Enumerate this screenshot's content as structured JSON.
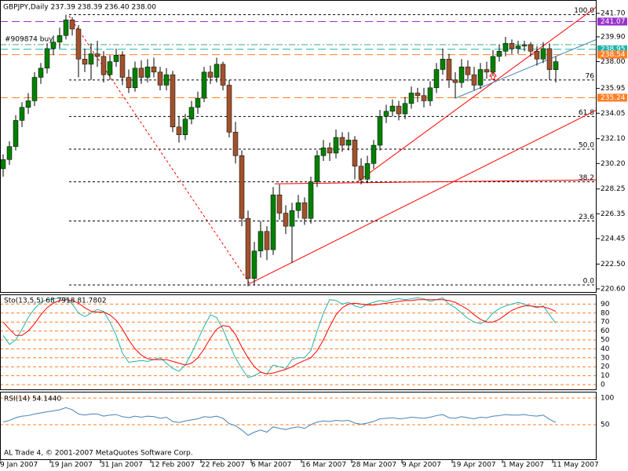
{
  "chart_data": [
    {
      "type": "candlestick",
      "header": "GBPJPY,Daily 237.39 238.39 236.40 238.00",
      "order_label": "#909874 buy",
      "copyright": "AL Trade 4, © 2001-2007 MetaQuotes Software Corp.",
      "up_color": "#008000",
      "down_color": "#a0522d",
      "wick_color": "#000000",
      "ylim": [
        220.6,
        241.7
      ],
      "yticks": [
        {
          "value": 241.7,
          "label": "241.70"
        },
        {
          "value": 239.9,
          "label": "239.90"
        },
        {
          "value": 238.0,
          "label": "238.00"
        },
        235.95,
        234.05,
        {
          "value": 232.1,
          "label": "232.10"
        },
        {
          "value": 230.2,
          "label": "230.20"
        },
        228.25,
        226.35,
        224.45,
        {
          "value": 222.5,
          "label": "222.50"
        },
        {
          "value": 220.6,
          "label": "220.60"
        }
      ],
      "categories": [
        "9 Jan 2007",
        null,
        null,
        null,
        null,
        null,
        null,
        null,
        "19 Jan 2007",
        null,
        null,
        null,
        null,
        null,
        null,
        null,
        "31 Jan 2007",
        null,
        null,
        null,
        null,
        null,
        null,
        null,
        "12 Feb 2007",
        null,
        null,
        null,
        null,
        null,
        null,
        null,
        "22 Feb 2007",
        null,
        null,
        null,
        null,
        null,
        null,
        null,
        "6 Mar 2007",
        null,
        null,
        null,
        null,
        null,
        null,
        null,
        "16 Mar 2007",
        null,
        null,
        null,
        null,
        null,
        null,
        null,
        "28 Mar 2007",
        null,
        null,
        null,
        null,
        null,
        null,
        null,
        "9 Apr 2007",
        null,
        null,
        null,
        null,
        null,
        null,
        null,
        "19 Apr 2007",
        null,
        null,
        null,
        null,
        null,
        null,
        null,
        "1 May 2007",
        null,
        null,
        null,
        null,
        null,
        null,
        null,
        "11 May 2007"
      ],
      "ohlc": [
        [
          229.8,
          230.9,
          229.2,
          230.5
        ],
        [
          230.5,
          231.9,
          230.1,
          231.5
        ],
        [
          231.5,
          233.9,
          231.2,
          233.5
        ],
        [
          233.5,
          234.9,
          233.0,
          234.5
        ],
        [
          234.5,
          235.6,
          234.0,
          235.0
        ],
        [
          235.0,
          237.2,
          234.6,
          236.8
        ],
        [
          236.8,
          237.9,
          236.3,
          237.5
        ],
        [
          237.5,
          239.4,
          237.1,
          239.0
        ],
        [
          239.0,
          240.0,
          238.5,
          239.5
        ],
        [
          239.5,
          240.6,
          239.0,
          240.0
        ],
        [
          240.0,
          241.6,
          239.7,
          241.2
        ],
        [
          241.2,
          241.4,
          240.0,
          240.5
        ],
        [
          240.5,
          240.8,
          236.8,
          238.2
        ],
        [
          238.2,
          239.0,
          237.2,
          237.8
        ],
        [
          237.8,
          239.4,
          236.6,
          238.6
        ],
        [
          238.6,
          239.6,
          237.6,
          238.4
        ],
        [
          238.4,
          238.8,
          236.4,
          237.0
        ],
        [
          237.0,
          238.5,
          236.6,
          238.0
        ],
        [
          238.0,
          239.0,
          237.6,
          238.5
        ],
        [
          238.5,
          238.8,
          236.2,
          236.8
        ],
        [
          236.8,
          237.4,
          235.6,
          236.0
        ],
        [
          236.0,
          238.0,
          235.7,
          237.5
        ],
        [
          237.5,
          238.1,
          236.3,
          236.8
        ],
        [
          236.8,
          238.2,
          236.4,
          237.6
        ],
        [
          237.6,
          238.3,
          236.8,
          237.2
        ],
        [
          237.2,
          237.6,
          235.8,
          236.2
        ],
        [
          236.2,
          237.5,
          235.8,
          237.0
        ],
        [
          237.0,
          237.3,
          232.6,
          233.0
        ],
        [
          233.0,
          233.8,
          231.8,
          232.4
        ],
        [
          232.4,
          234.0,
          232.0,
          233.6
        ],
        [
          233.6,
          235.0,
          233.2,
          234.5
        ],
        [
          234.5,
          235.7,
          234.0,
          235.2
        ],
        [
          235.2,
          237.6,
          234.9,
          237.2
        ],
        [
          237.2,
          237.7,
          236.3,
          236.8
        ],
        [
          236.8,
          238.3,
          236.4,
          237.8
        ],
        [
          237.8,
          238.0,
          235.8,
          236.2
        ],
        [
          236.2,
          236.6,
          232.2,
          232.6
        ],
        [
          232.6,
          233.4,
          230.2,
          230.8
        ],
        [
          230.8,
          231.2,
          225.4,
          226.0
        ],
        [
          226.0,
          226.6,
          220.8,
          221.4
        ],
        [
          221.4,
          224.2,
          220.9,
          223.5
        ],
        [
          223.5,
          225.8,
          223.0,
          225.0
        ],
        [
          225.0,
          225.4,
          222.8,
          223.6
        ],
        [
          223.6,
          228.4,
          223.2,
          227.8
        ],
        [
          227.8,
          228.6,
          225.9,
          226.4
        ],
        [
          226.4,
          227.0,
          224.8,
          225.4
        ],
        [
          225.4,
          227.2,
          222.6,
          226.6
        ],
        [
          226.6,
          227.8,
          226.0,
          227.2
        ],
        [
          227.2,
          227.6,
          225.5,
          226.0
        ],
        [
          226.0,
          229.2,
          225.6,
          228.8
        ],
        [
          228.8,
          231.2,
          228.4,
          230.8
        ],
        [
          230.8,
          232.0,
          230.4,
          231.4
        ],
        [
          231.4,
          231.8,
          230.4,
          231.0
        ],
        [
          231.0,
          232.8,
          230.6,
          232.2
        ],
        [
          232.2,
          232.6,
          231.1,
          231.6
        ],
        [
          231.6,
          232.6,
          231.2,
          232.0
        ],
        [
          232.0,
          232.3,
          229.0,
          230.0
        ],
        [
          230.0,
          230.6,
          228.6,
          229.0
        ],
        [
          229.0,
          230.8,
          228.7,
          230.2
        ],
        [
          230.2,
          232.0,
          229.8,
          231.6
        ],
        [
          231.6,
          234.3,
          231.2,
          233.8
        ],
        [
          233.8,
          234.7,
          233.3,
          234.2
        ],
        [
          234.2,
          235.1,
          233.8,
          234.6
        ],
        [
          234.6,
          235.0,
          233.5,
          234.0
        ],
        [
          234.0,
          235.3,
          233.6,
          234.8
        ],
        [
          234.8,
          236.1,
          234.4,
          235.6
        ],
        [
          235.6,
          236.0,
          234.9,
          235.4
        ],
        [
          235.4,
          236.0,
          234.5,
          235.0
        ],
        [
          235.0,
          236.5,
          234.6,
          236.0
        ],
        [
          236.0,
          237.9,
          235.6,
          237.4
        ],
        [
          237.4,
          239.0,
          237.0,
          238.2
        ],
        [
          238.2,
          238.6,
          236.0,
          236.6
        ],
        [
          236.6,
          237.2,
          235.2,
          236.4
        ],
        [
          236.4,
          238.2,
          236.0,
          237.6
        ],
        [
          237.6,
          238.1,
          236.5,
          237.0
        ],
        [
          237.0,
          237.6,
          235.8,
          236.2
        ],
        [
          236.2,
          237.9,
          235.9,
          237.4
        ],
        [
          237.4,
          238.0,
          236.7,
          237.2
        ],
        [
          237.2,
          238.9,
          236.9,
          238.4
        ],
        [
          238.4,
          239.3,
          238.0,
          238.8
        ],
        [
          238.8,
          239.9,
          238.4,
          239.4
        ],
        [
          239.4,
          239.7,
          238.6,
          239.0
        ],
        [
          239.0,
          239.6,
          238.6,
          239.2
        ],
        [
          239.2,
          239.6,
          238.8,
          239.3
        ],
        [
          239.3,
          239.5,
          238.4,
          238.8
        ],
        [
          238.8,
          239.2,
          237.7,
          238.2
        ],
        [
          238.2,
          239.5,
          237.9,
          239.0
        ],
        [
          239.0,
          239.4,
          236.6,
          237.39
        ],
        [
          237.39,
          238.39,
          236.4,
          238.0
        ]
      ],
      "fib_levels": [
        {
          "label": "100.0",
          "price": 241.6
        },
        {
          "label": "76",
          "price": 236.6
        },
        {
          "label": "61.8",
          "price": 233.8
        },
        {
          "label": "50.0",
          "price": 231.3
        },
        {
          "label": "38.2",
          "price": 228.8
        },
        {
          "label": "23.6",
          "price": 225.8
        },
        {
          "label": "0.0",
          "price": 220.9
        }
      ],
      "price_lines": [
        {
          "price": 241.07,
          "color": "#9932cc",
          "labeled": true
        },
        {
          "price": 239.3,
          "color": "#3cb371",
          "labeled": false
        },
        {
          "price": 238.95,
          "color": "#20b2aa",
          "labeled": true
        },
        {
          "price": 238.54,
          "color": "#ff7f27",
          "labeled": true
        },
        {
          "price": 235.24,
          "color": "#ff7f27",
          "labeled": true
        }
      ],
      "trendlines": [
        {
          "from": [
            10.5,
            241.5
          ],
          "to": [
            39.25,
            221.0
          ],
          "color": "#ff0000",
          "dashed": true
        },
        {
          "from": [
            56.4,
            228.8
          ],
          "to": [
            94.5,
            242.2
          ],
          "color": "#ff0000",
          "dashed": false
        },
        {
          "from": [
            39.25,
            221.0
          ],
          "to": [
            94.5,
            234.3
          ],
          "color": "#ff0000",
          "dashed": false
        },
        {
          "from": [
            72,
            235.2
          ],
          "to": [
            94.5,
            239.7
          ],
          "color": "#4682b4",
          "dashed": false
        },
        {
          "from": [
            43.25,
            228.65
          ],
          "to": [
            94.5,
            228.95
          ],
          "color": "#ff0000",
          "dashed": false
        }
      ]
    },
    {
      "type": "line",
      "title": "Sto(13,5,5) 68.7918 81.7802",
      "ylim": [
        0,
        100
      ],
      "yticks": [
        90,
        80,
        70,
        60,
        50,
        40,
        30,
        20,
        10,
        0
      ],
      "grid_color": "#ff7f27",
      "series": [
        {
          "color": "#20b2aa",
          "values": [
            55,
            45,
            50,
            62,
            75,
            85,
            92,
            95,
            96,
            97,
            97,
            90,
            80,
            76,
            80,
            84,
            82,
            70,
            55,
            35,
            25,
            26,
            27,
            26,
            28,
            30,
            24,
            18,
            15,
            22,
            35,
            50,
            65,
            78,
            75,
            62,
            45,
            30,
            18,
            8,
            10,
            14,
            12,
            22,
            20,
            18,
            28,
            30,
            30,
            38,
            60,
            80,
            95,
            94,
            90,
            92,
            88,
            86,
            90,
            92,
            94,
            93,
            95,
            96,
            95,
            96,
            97,
            96,
            93,
            95,
            97,
            90,
            86,
            80,
            74,
            70,
            68,
            72,
            80,
            85,
            88,
            90,
            92,
            90,
            88,
            86,
            88,
            78,
            68.79
          ]
        },
        {
          "color": "#ff0000",
          "values": [
            70,
            62,
            55,
            55,
            60,
            68,
            78,
            86,
            91,
            94,
            95,
            94,
            91,
            86,
            82,
            81,
            81,
            78,
            72,
            62,
            50,
            40,
            33,
            29,
            28,
            28,
            28,
            26,
            24,
            22,
            24,
            30,
            40,
            52,
            62,
            66,
            65,
            56,
            42,
            30,
            20,
            14,
            12,
            13,
            15,
            17,
            20,
            24,
            27,
            30,
            38,
            50,
            65,
            78,
            86,
            90,
            91,
            90,
            89,
            89,
            90,
            91,
            92,
            93,
            94,
            94,
            95,
            95,
            95,
            95,
            95,
            94,
            92,
            88,
            84,
            78,
            73,
            70,
            70,
            73,
            78,
            83,
            86,
            88,
            88,
            87,
            87,
            85,
            81.78
          ]
        }
      ]
    },
    {
      "type": "line",
      "title": "RSI(14) 54.1440",
      "ylim": [
        0,
        100
      ],
      "yticks": [
        100,
        50
      ],
      "grid_color": "#ff7f27",
      "series": [
        {
          "color": "#4682b4",
          "values": [
            55,
            58,
            63,
            66,
            67,
            70,
            72,
            74,
            76,
            78,
            82,
            78,
            70,
            68,
            70,
            70,
            66,
            68,
            69,
            65,
            63,
            66,
            64,
            66,
            65,
            62,
            64,
            56,
            54,
            57,
            59,
            61,
            65,
            64,
            66,
            62,
            52,
            48,
            40,
            30,
            36,
            40,
            36,
            46,
            43,
            41,
            44,
            46,
            43,
            50,
            55,
            57,
            56,
            58,
            57,
            58,
            53,
            51,
            53,
            56,
            61,
            62,
            63,
            61,
            62,
            64,
            63,
            62,
            64,
            67,
            69,
            63,
            62,
            65,
            63,
            61,
            64,
            63,
            66,
            67,
            69,
            68,
            68,
            69,
            67,
            66,
            68,
            60,
            54.144
          ]
        }
      ]
    }
  ]
}
